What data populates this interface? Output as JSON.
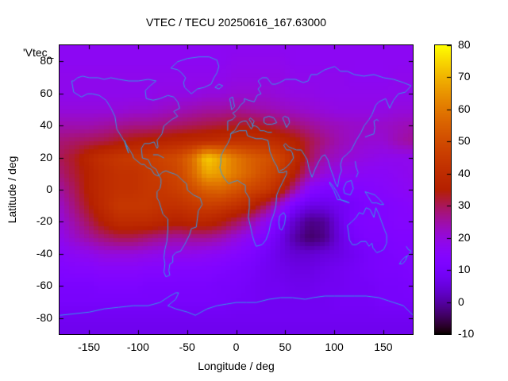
{
  "chart_data": {
    "type": "heatmap",
    "title": "VTEC / TECU 20250616_167.63000",
    "xlabel": "Longitude / deg",
    "ylabel": "Latitude / deg",
    "overlay_label": "'Vtec_",
    "xlim": [
      -180,
      180
    ],
    "ylim": [
      -90,
      90
    ],
    "x_ticks": [
      -150,
      -100,
      -50,
      0,
      50,
      100,
      150
    ],
    "y_ticks": [
      80,
      60,
      40,
      20,
      0,
      -20,
      -40,
      -60,
      -80
    ],
    "colorbar": {
      "min": -10,
      "max": 80,
      "ticks": [
        80,
        70,
        60,
        50,
        40,
        30,
        20,
        10,
        0,
        -10
      ],
      "palette": "pm3d black-violet-red-orange-yellow"
    },
    "coastline_color": "#3399e6",
    "grid": {
      "lat_start": 90,
      "lat_step": -10,
      "lon_start": -180,
      "lon_step": 15,
      "values": [
        [
          17,
          17,
          17,
          17,
          17,
          17,
          17,
          17,
          17,
          17,
          17,
          17,
          17,
          17,
          17,
          17,
          17,
          17,
          17,
          17,
          17,
          17,
          17,
          17,
          17
        ],
        [
          17,
          17,
          17,
          17,
          17,
          17,
          17,
          17,
          17,
          17,
          17,
          17,
          18,
          18,
          18,
          18,
          17,
          17,
          17,
          17,
          17,
          17,
          17,
          17,
          17
        ],
        [
          18,
          18,
          18,
          18,
          18,
          18,
          18,
          18,
          18,
          18,
          18,
          18,
          19,
          19,
          19,
          19,
          18,
          18,
          18,
          18,
          17,
          17,
          17,
          18,
          18
        ],
        [
          18,
          18,
          18,
          18,
          18,
          18,
          18,
          19,
          19,
          19,
          20,
          20,
          21,
          21,
          21,
          20,
          19,
          19,
          18,
          18,
          18,
          18,
          18,
          18,
          18
        ],
        [
          20,
          20,
          20,
          20,
          20,
          21,
          21,
          22,
          23,
          24,
          25,
          25,
          26,
          25,
          24,
          23,
          22,
          21,
          20,
          19,
          19,
          19,
          19,
          20,
          20
        ],
        [
          24,
          24,
          24,
          25,
          26,
          27,
          27,
          28,
          29,
          30,
          31,
          32,
          33,
          33,
          32,
          30,
          28,
          26,
          24,
          23,
          22,
          22,
          22,
          23,
          24
        ],
        [
          28,
          29,
          30,
          31,
          33,
          35,
          36,
          37,
          38,
          39,
          40,
          41,
          42,
          42,
          41,
          39,
          36,
          31,
          27,
          24,
          22,
          21,
          21,
          24,
          26
        ],
        [
          30,
          33,
          38,
          42,
          44,
          45,
          46,
          48,
          50,
          58,
          74,
          68,
          60,
          55,
          52,
          48,
          40,
          30,
          24,
          22,
          20,
          19,
          18,
          18,
          18
        ],
        [
          28,
          32,
          36,
          40,
          42,
          42,
          44,
          46,
          48,
          56,
          68,
          66,
          60,
          55,
          50,
          45,
          35,
          25,
          20,
          18,
          17,
          16,
          16,
          17,
          18
        ],
        [
          25,
          30,
          36,
          40,
          42,
          42,
          44,
          44,
          46,
          50,
          55,
          56,
          52,
          48,
          45,
          38,
          25,
          15,
          12,
          12,
          13,
          14,
          15,
          16,
          17
        ],
        [
          22,
          28,
          34,
          40,
          44,
          44,
          44,
          42,
          42,
          44,
          46,
          45,
          42,
          38,
          30,
          20,
          10,
          6,
          6,
          8,
          10,
          12,
          13,
          14,
          15
        ],
        [
          20,
          25,
          30,
          36,
          40,
          40,
          40,
          38,
          36,
          38,
          38,
          35,
          30,
          25,
          18,
          10,
          3,
          -2,
          -1,
          6,
          12,
          13,
          13,
          14,
          14
        ],
        [
          18,
          22,
          25,
          28,
          30,
          30,
          28,
          26,
          25,
          26,
          26,
          24,
          20,
          16,
          12,
          7,
          0,
          -4,
          -2,
          5,
          10,
          12,
          12,
          13,
          13
        ],
        [
          15,
          17,
          18,
          20,
          20,
          20,
          19,
          18,
          18,
          18,
          17,
          16,
          14,
          12,
          9,
          6,
          4,
          4,
          5,
          6,
          8,
          10,
          11,
          12,
          13
        ],
        [
          13,
          14,
          14,
          15,
          15,
          15,
          14,
          14,
          13,
          13,
          13,
          12,
          11,
          10,
          8,
          7,
          6,
          6,
          7,
          8,
          9,
          10,
          11,
          11,
          12
        ],
        [
          11,
          11,
          11,
          12,
          12,
          12,
          11,
          11,
          11,
          11,
          11,
          10,
          10,
          9,
          8,
          8,
          7,
          7,
          8,
          8,
          9,
          9,
          10,
          10,
          11
        ],
        [
          10,
          10,
          10,
          10,
          10,
          10,
          10,
          10,
          10,
          10,
          10,
          10,
          9,
          9,
          8,
          8,
          8,
          8,
          8,
          9,
          9,
          9,
          10,
          10,
          10
        ],
        [
          8,
          8,
          8,
          8,
          8,
          8,
          8,
          8,
          8,
          8,
          8,
          8,
          8,
          8,
          8,
          8,
          8,
          8,
          8,
          8,
          8,
          8,
          8,
          8,
          8
        ],
        [
          7,
          7,
          7,
          7,
          7,
          7,
          7,
          7,
          7,
          7,
          7,
          7,
          7,
          7,
          7,
          7,
          7,
          7,
          7,
          7,
          7,
          7,
          7,
          7,
          7
        ]
      ]
    },
    "coastlines": [
      [
        -168,
        68,
        -166,
        61,
        -158,
        58,
        -152,
        60,
        -147,
        60,
        -140,
        59,
        -133,
        56,
        -128,
        51,
        -124,
        46,
        -122,
        38,
        -117,
        33,
        -112,
        28,
        -106,
        22,
        -105,
        20,
        -97,
        16,
        -94,
        16,
        -91,
        14,
        -87,
        13,
        -84,
        10,
        -81,
        9,
        -79,
        9,
        -82,
        13,
        -87,
        15,
        -90,
        19,
        -96,
        20,
        -97,
        26,
        -94,
        29,
        -89,
        29,
        -84,
        30,
        -81,
        26,
        -80,
        27,
        -81,
        31,
        -76,
        35,
        -74,
        40,
        -70,
        42,
        -66,
        44,
        -60,
        46,
        -64,
        49,
        -58,
        51,
        -60,
        55,
        -64,
        58,
        -70,
        59,
        -78,
        57,
        -85,
        56,
        -92,
        57,
        -93,
        62,
        -88,
        65,
        -82,
        68,
        -90,
        69,
        -100,
        68,
        -110,
        68,
        -120,
        69,
        -128,
        70,
        -135,
        69,
        -141,
        70,
        -150,
        70,
        -157,
        71,
        -162,
        70,
        -166,
        68,
        -168,
        68
      ],
      [
        -79,
        9,
        -76,
        11,
        -72,
        12,
        -68,
        11,
        -63,
        10,
        -60,
        9,
        -55,
        6,
        -51,
        4,
        -50,
        0,
        -44,
        -3,
        -37,
        -5,
        -35,
        -9,
        -39,
        -13,
        -40,
        -18,
        -41,
        -23,
        -46,
        -24,
        -48,
        -28,
        -53,
        -34,
        -57,
        -38,
        -62,
        -39,
        -65,
        -41,
        -65,
        -45,
        -68,
        -46,
        -69,
        -50,
        -68,
        -53,
        -72,
        -54,
        -74,
        -51,
        -73,
        -46,
        -74,
        -42,
        -73,
        -37,
        -71,
        -32,
        -70,
        -25,
        -70,
        -18,
        -75,
        -15,
        -77,
        -11,
        -79,
        -7,
        -81,
        -5,
        -81,
        -1,
        -78,
        1,
        -77,
        4,
        -77,
        7,
        -79,
        9
      ],
      [
        -46,
        60,
        -53,
        64,
        -54,
        67,
        -52,
        70,
        -56,
        73,
        -60,
        75,
        -67,
        76,
        -60,
        80,
        -50,
        82,
        -38,
        83,
        -28,
        83,
        -20,
        81,
        -18,
        77,
        -20,
        73,
        -23,
        70,
        -26,
        66,
        -33,
        64,
        -40,
        63,
        -46,
        60
      ],
      [
        -6,
        35,
        -2,
        36,
        3,
        37,
        10,
        37,
        11,
        34,
        15,
        33,
        20,
        32,
        26,
        32,
        32,
        31,
        33,
        28,
        34,
        24,
        36,
        21,
        38,
        18,
        41,
        15,
        43,
        11,
        48,
        11,
        51,
        12,
        51,
        10,
        47,
        5,
        43,
        0,
        41,
        -3,
        40,
        -10,
        38,
        -15,
        35,
        -20,
        33,
        -26,
        30,
        -31,
        26,
        -34,
        20,
        -35,
        18,
        -32,
        16,
        -28,
        14,
        -22,
        12,
        -17,
        13,
        -11,
        13,
        -5,
        9,
        -1,
        9,
        3,
        6,
        4,
        1,
        6,
        -4,
        5,
        -8,
        4,
        -12,
        7,
        -15,
        10,
        -17,
        14,
        -16,
        17,
        -16,
        21,
        -13,
        25,
        -9,
        29,
        -6,
        33,
        -6,
        35
      ],
      [
        -9,
        37,
        -9,
        43,
        -4,
        44,
        -1,
        46,
        -4,
        48,
        -1,
        49,
        2,
        51,
        4,
        53,
        8,
        55,
        8,
        57,
        12,
        56,
        18,
        55,
        21,
        59,
        25,
        60,
        22,
        63,
        25,
        65,
        22,
        68,
        26,
        70,
        31,
        70,
        36,
        66,
        40,
        66,
        44,
        67,
        50,
        69,
        60,
        69,
        68,
        67,
        73,
        68,
        76,
        72,
        82,
        72,
        90,
        75,
        100,
        77,
        106,
        74,
        113,
        74,
        120,
        72,
        130,
        71,
        140,
        72,
        150,
        70,
        160,
        69,
        170,
        67,
        178,
        65
      ],
      [
        178,
        65,
        172,
        61,
        165,
        60,
        160,
        56,
        156,
        51,
        152,
        57,
        145,
        55,
        142,
        53,
        138,
        47,
        135,
        44,
        130,
        40,
        127,
        36,
        122,
        31,
        117,
        25,
        112,
        22,
        108,
        20,
        106,
        16,
        107,
        12,
        105,
        9,
        103,
        2,
        101,
        4,
        99,
        8,
        96,
        13,
        93,
        19,
        90,
        22,
        87,
        21,
        84,
        18,
        80,
        13,
        77,
        8,
        74,
        13,
        72,
        19,
        68,
        23,
        66,
        25,
        61,
        25,
        57,
        26,
        53,
        27,
        50,
        29,
        48,
        28,
        51,
        25,
        55,
        25,
        57,
        23,
        58,
        20,
        55,
        17,
        52,
        15,
        48,
        13,
        44,
        12
      ],
      [
        36,
        36,
        32,
        36,
        28,
        37,
        24,
        37,
        22,
        39,
        19,
        40,
        16,
        40,
        18,
        43,
        14,
        45,
        13,
        44,
        15,
        42,
        17,
        40,
        15,
        38,
        13,
        40,
        10,
        43,
        7,
        43,
        3,
        42,
        0,
        39,
        -2,
        37,
        -5,
        36,
        -6,
        35
      ],
      [
        28,
        45,
        33,
        46,
        38,
        45,
        41,
        42,
        36,
        41,
        31,
        41,
        28,
        42,
        28,
        45
      ],
      [
        49,
        46,
        53,
        45,
        54,
        42,
        51,
        39,
        49,
        42,
        47,
        45,
        49,
        46
      ],
      [
        113,
        -22,
        114,
        -26,
        115,
        -31,
        118,
        -34,
        122,
        -34,
        127,
        -32,
        132,
        -32,
        135,
        -35,
        138,
        -33,
        139,
        -36,
        143,
        -39,
        147,
        -38,
        150,
        -37,
        153,
        -33,
        153,
        -28,
        151,
        -25,
        148,
        -20,
        145,
        -15,
        142,
        -11,
        140,
        -17,
        136,
        -12,
        132,
        -11,
        129,
        -15,
        125,
        -14,
        122,
        -17,
        117,
        -20,
        113,
        -22
      ],
      [
        -180,
        -78,
        -165,
        -77,
        -150,
        -76,
        -135,
        -74,
        -120,
        -73,
        -105,
        -72,
        -90,
        -72,
        -78,
        -70,
        -68,
        -66,
        -62,
        -64,
        -59,
        -64,
        -62,
        -68,
        -70,
        -72,
        -62,
        -74,
        -50,
        -76,
        -42,
        -78,
        -30,
        -74,
        -20,
        -72,
        -10,
        -71,
        0,
        -70,
        10,
        -70,
        20,
        -70,
        33,
        -68,
        45,
        -67,
        57,
        -67,
        70,
        -68,
        78,
        -67,
        90,
        -66,
        100,
        -66,
        110,
        -66,
        120,
        -66,
        132,
        -66,
        145,
        -67,
        155,
        -69,
        165,
        -71,
        170,
        -72,
        180,
        -78
      ],
      [
        -5,
        50,
        -2,
        52,
        -3,
        55,
        -4,
        58,
        -7,
        57,
        -6,
        54,
        -5,
        50
      ],
      [
        -22,
        64,
        -18,
        66,
        -14,
        65,
        -18,
        63,
        -22,
        64
      ],
      [
        131,
        33,
        135,
        34,
        140,
        35,
        141,
        39,
        140,
        43,
        143,
        44,
        145,
        43
      ],
      [
        44,
        -16,
        48,
        -14,
        50,
        -16,
        49,
        -21,
        46,
        -25,
        44,
        -24,
        43,
        -20,
        44,
        -16
      ],
      [
        173,
        -35,
        175,
        -37,
        178,
        -38,
        176,
        -40,
        174,
        -41,
        171,
        -42,
        168,
        -44,
        166,
        -46,
        169,
        -46,
        172,
        -44,
        174,
        -41
      ],
      [
        109,
        1,
        112,
        5,
        117,
        6,
        119,
        1,
        116,
        -3,
        110,
        -2,
        109,
        1
      ],
      [
        95,
        5,
        99,
        2,
        103,
        -2,
        106,
        -6,
        103,
        -6,
        99,
        0,
        95,
        4,
        95,
        5
      ],
      [
        106,
        -6,
        112,
        -7,
        115,
        -8,
        110,
        -7,
        106,
        -6
      ],
      [
        131,
        -1,
        136,
        -2,
        141,
        -3,
        146,
        -6,
        150,
        -9,
        147,
        -9,
        143,
        -8,
        138,
        -8,
        134,
        -4,
        131,
        -1
      ],
      [
        121,
        18,
        122,
        14,
        124,
        11,
        122,
        8
      ],
      [
        -85,
        22,
        -80,
        22,
        -74,
        20
      ],
      [
        -114,
        31,
        -112,
        27,
        -110,
        23,
        -112,
        26,
        -114,
        30
      ]
    ]
  }
}
